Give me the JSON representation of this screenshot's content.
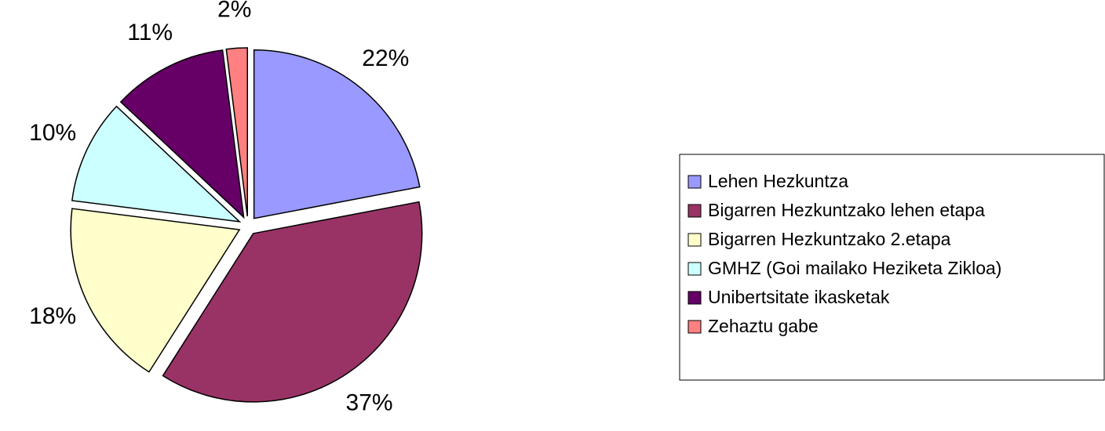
{
  "chart_data": {
    "type": "pie",
    "categories": [
      "Lehen Hezkuntza",
      "Bigarren Hezkuntzako lehen etapa",
      "Bigarren Hezkuntzako 2.etapa",
      "GMHZ (Goi mailako Heziketa Zikloa)",
      "Unibertsitate ikasketak",
      "Zehaztu gabe"
    ],
    "values": [
      22,
      37,
      18,
      10,
      11,
      2
    ],
    "value_labels": [
      "22%",
      "37%",
      "18%",
      "10%",
      "11%",
      "2%"
    ],
    "colors": [
      "#9999ff",
      "#993366",
      "#ffffcc",
      "#ccffff",
      "#660066",
      "#ff8080"
    ],
    "legend": "right"
  }
}
